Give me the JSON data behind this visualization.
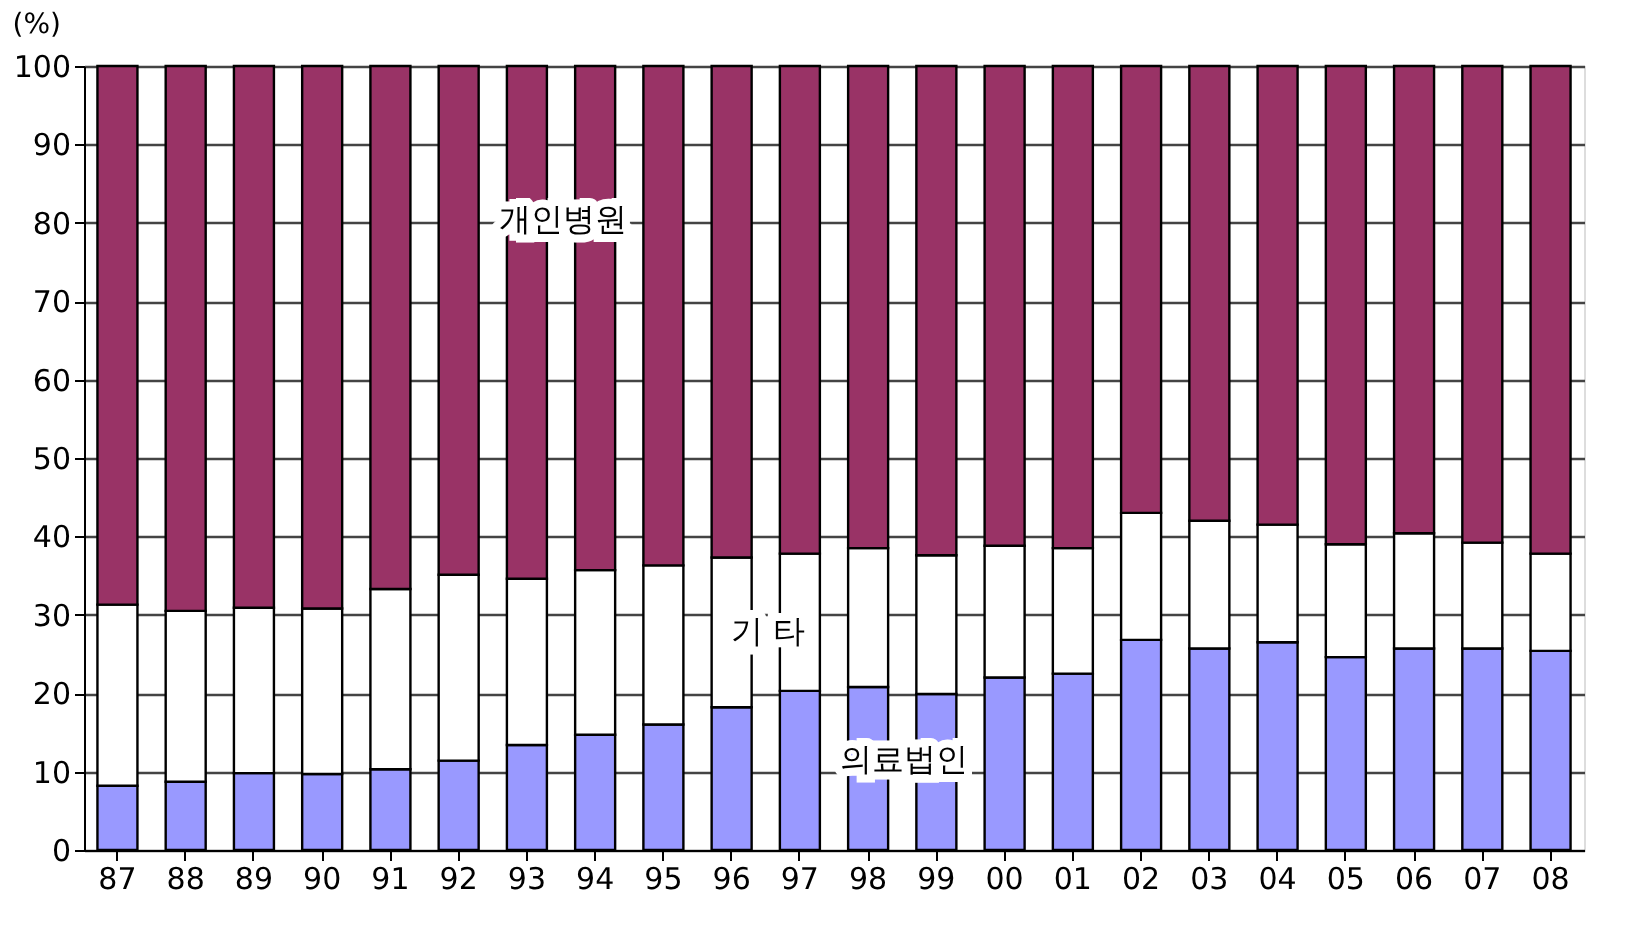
{
  "chart_data": {
    "type": "bar",
    "stacked": true,
    "ylabel": "(%)",
    "categories": [
      "87",
      "88",
      "89",
      "90",
      "91",
      "92",
      "93",
      "94",
      "95",
      "96",
      "97",
      "98",
      "99",
      "00",
      "01",
      "02",
      "03",
      "04",
      "05",
      "06",
      "07",
      "08"
    ],
    "series": [
      {
        "name": "의료법인",
        "color": "#9999ff",
        "values": [
          8.2,
          8.7,
          9.8,
          9.7,
          10.3,
          11.4,
          13.4,
          14.7,
          16.0,
          18.2,
          20.3,
          20.8,
          19.9,
          22.0,
          22.5,
          26.8,
          25.7,
          26.5,
          24.6,
          25.7,
          25.7,
          25.4
        ]
      },
      {
        "name": "기 타",
        "color": "#ffffff",
        "values": [
          23.1,
          21.8,
          21.1,
          21.1,
          23.0,
          23.7,
          21.2,
          21.0,
          20.3,
          19.1,
          17.5,
          17.7,
          17.7,
          16.8,
          16.0,
          16.2,
          16.3,
          15.0,
          14.4,
          14.7,
          13.5,
          12.4
        ]
      },
      {
        "name": "개인병원",
        "color": "#993366",
        "values": [
          68.7,
          69.5,
          69.1,
          69.2,
          66.7,
          64.9,
          65.4,
          64.3,
          63.7,
          62.7,
          62.2,
          61.5,
          62.4,
          61.2,
          61.5,
          57.0,
          58.0,
          58.5,
          61.0,
          59.6,
          60.8,
          62.2
        ]
      }
    ],
    "ylim": [
      0,
      100
    ],
    "yticks": [
      0,
      10,
      20,
      30,
      40,
      50,
      60,
      70,
      80,
      90,
      100
    ],
    "grid": "y",
    "legend": false
  }
}
